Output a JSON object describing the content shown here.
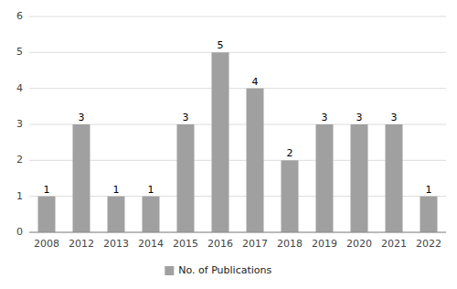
{
  "chart_data": {
    "type": "bar",
    "categories": [
      "2008",
      "2012",
      "2013",
      "2014",
      "2015",
      "2016",
      "2017",
      "2018",
      "2019",
      "2020",
      "2021",
      "2022"
    ],
    "series": [
      {
        "name": "No. of Publications",
        "color": "#a0a0a0",
        "values": [
          1,
          3,
          1,
          1,
          3,
          5,
          4,
          2,
          3,
          3,
          3,
          1
        ]
      }
    ],
    "ylim": [
      0,
      6
    ],
    "yticks": [
      0,
      1,
      2,
      3,
      4,
      5,
      6
    ],
    "grid": true,
    "legend": "bottom",
    "data_labels": true
  }
}
